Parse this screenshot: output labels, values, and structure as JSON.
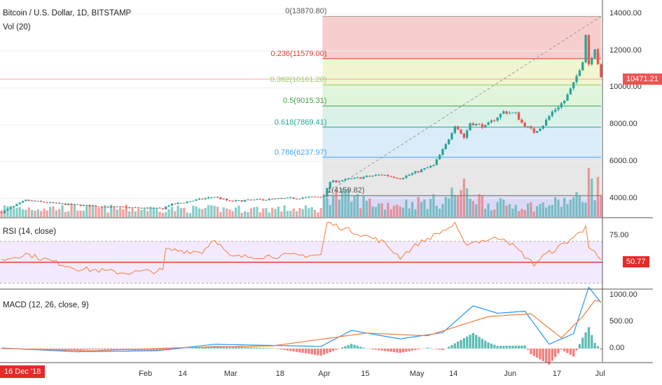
{
  "header": {
    "symbol": "Bitcoin / U.S. Dollar, 1D, BITSTAMP",
    "volume_title": "Vol (20)"
  },
  "rsi_panel": {
    "title": "RSI (14, close)",
    "last_value": "50.77"
  },
  "macd_panel": {
    "title": "MACD (12, 26, close, 9)"
  },
  "price_axis": {
    "ticks": [
      "14000.00",
      "12000.00",
      "10000.00",
      "8000.00",
      "6000.00",
      "4000.00"
    ],
    "last_price": "10471.21"
  },
  "rsi_axis": {
    "ticks": [
      "75.00"
    ]
  },
  "macd_axis": {
    "ticks": [
      "1000.00",
      "500.00",
      "0.00"
    ]
  },
  "time_axis": {
    "first_date": "16 Dec '18",
    "ticks": [
      "Feb",
      "14",
      "Mar",
      "18",
      "Apr",
      "15",
      "May",
      "14",
      "Jun",
      "17",
      "Jul"
    ]
  },
  "colors": {
    "up": "#26a69a",
    "down": "#ef5350",
    "rsi_line": "#f57c38",
    "rsi_band": "#ecdcff",
    "macd_line": "#2196f3",
    "signal_line": "#f57c38",
    "last_price_tag": "#ef5350",
    "rsi_tag": "#e52a2a"
  },
  "chart_data": {
    "type": "candlestick",
    "symbol": "Bitcoin / U.S. Dollar, 1D, BITSTAMP",
    "price_range": [
      3000,
      14000
    ],
    "last_price": 10471.21,
    "fibonacci": [
      {
        "level": "0",
        "price": 13870.8,
        "label": "0(13870.80)",
        "color": "#9e9e9e",
        "fill": "#f5c6c6"
      },
      {
        "level": "0.236",
        "price": 11579.0,
        "label": "0.236(11579.00)",
        "color": "#e53935",
        "fill": "#f0f5c8"
      },
      {
        "level": "0.382",
        "price": 10161.2,
        "label": "0.382(10161.20)",
        "color": "#9ccc65",
        "fill": "#dcf3d6"
      },
      {
        "level": "0.5",
        "price": 9015.31,
        "label": "0.5(9015.31)",
        "color": "#43a047",
        "fill": "#d3efe4"
      },
      {
        "level": "0.618",
        "price": 7869.41,
        "label": "0.618(7869.41)",
        "color": "#26a69a",
        "fill": "#d4e9f7"
      },
      {
        "level": "0.786",
        "price": 6237.97,
        "label": "0.786(6237.97)",
        "color": "#42a5f5",
        "fill": "#e3e3e3"
      },
      {
        "level": "1",
        "price": 4159.82,
        "label": "1(4159.82)",
        "color": "#757575",
        "fill": "#d4d2f3"
      }
    ],
    "price_segments": [
      [
        "2018-12-16",
        3250
      ],
      [
        "2018-12-24",
        3900
      ],
      [
        "2019-01-05",
        3700
      ],
      [
        "2019-01-20",
        3550
      ],
      [
        "2019-02-07",
        3450
      ],
      [
        "2019-02-09",
        3650
      ],
      [
        "2019-02-24",
        4100
      ],
      [
        "2019-03-01",
        3850
      ],
      [
        "2019-03-31",
        4100
      ],
      [
        "2019-04-01",
        4150
      ],
      [
        "2019-04-03",
        4900
      ],
      [
        "2019-04-20",
        5300
      ],
      [
        "2019-04-26",
        5100
      ],
      [
        "2019-05-07",
        5800
      ],
      [
        "2019-05-11",
        6900
      ],
      [
        "2019-05-14",
        8000
      ],
      [
        "2019-05-17",
        7300
      ],
      [
        "2019-05-19",
        8100
      ],
      [
        "2019-05-24",
        7900
      ],
      [
        "2019-05-30",
        8700
      ],
      [
        "2019-06-03",
        8600
      ],
      [
        "2019-06-05",
        8100
      ],
      [
        "2019-06-09",
        7600
      ],
      [
        "2019-06-12",
        8000
      ],
      [
        "2019-06-15",
        8700
      ],
      [
        "2019-06-19",
        9300
      ],
      [
        "2019-06-22",
        10200
      ],
      [
        "2019-06-25",
        11500
      ],
      [
        "2019-06-26",
        12900
      ],
      [
        "2019-06-27",
        11300
      ],
      [
        "2019-06-29",
        12200
      ],
      [
        "2019-07-01",
        10471
      ]
    ],
    "volume_segments": [
      [
        "2018-12-16",
        0.35
      ],
      [
        "2019-02-08",
        0.3
      ],
      [
        "2019-03-31",
        0.3
      ],
      [
        "2019-04-02",
        0.9
      ],
      [
        "2019-04-20",
        0.45
      ],
      [
        "2019-05-10",
        0.6
      ],
      [
        "2019-05-14",
        0.9
      ],
      [
        "2019-05-17",
        1.0
      ],
      [
        "2019-05-25",
        0.5
      ],
      [
        "2019-06-10",
        0.4
      ],
      [
        "2019-06-25",
        0.7
      ],
      [
        "2019-06-27",
        1.4
      ],
      [
        "2019-07-01",
        0.9
      ]
    ],
    "rsi_segments": [
      [
        "2018-12-16",
        52
      ],
      [
        "2018-12-24",
        58
      ],
      [
        "2019-01-10",
        44
      ],
      [
        "2019-01-25",
        40
      ],
      [
        "2019-02-07",
        42
      ],
      [
        "2019-02-08",
        62
      ],
      [
        "2019-02-20",
        60
      ],
      [
        "2019-02-24",
        73
      ],
      [
        "2019-03-01",
        55
      ],
      [
        "2019-03-31",
        57
      ],
      [
        "2019-04-02",
        88
      ],
      [
        "2019-04-20",
        70
      ],
      [
        "2019-04-26",
        55
      ],
      [
        "2019-05-02",
        68
      ],
      [
        "2019-05-14",
        86
      ],
      [
        "2019-05-17",
        68
      ],
      [
        "2019-05-30",
        74
      ],
      [
        "2019-06-09",
        48
      ],
      [
        "2019-06-12",
        56
      ],
      [
        "2019-06-17",
        64
      ],
      [
        "2019-06-25",
        80
      ],
      [
        "2019-06-26",
        87
      ],
      [
        "2019-06-27",
        66
      ],
      [
        "2019-07-01",
        50.77
      ]
    ],
    "rsi_levels": {
      "upper": 70,
      "lower": 30,
      "mid": 50,
      "range": [
        25,
        92
      ]
    },
    "macd_segments": [
      [
        "2018-12-16",
        10
      ],
      [
        "2019-01-10",
        -60
      ],
      [
        "2019-02-05",
        -40
      ],
      [
        "2019-02-24",
        80
      ],
      [
        "2019-03-31",
        40
      ],
      [
        "2019-04-10",
        340
      ],
      [
        "2019-04-26",
        180
      ],
      [
        "2019-05-10",
        300
      ],
      [
        "2019-05-20",
        800
      ],
      [
        "2019-05-28",
        660
      ],
      [
        "2019-06-06",
        700
      ],
      [
        "2019-06-14",
        80
      ],
      [
        "2019-06-22",
        280
      ],
      [
        "2019-06-27",
        1150
      ],
      [
        "2019-07-01",
        860
      ]
    ],
    "signal_segments": [
      [
        "2018-12-16",
        0
      ],
      [
        "2019-01-15",
        -40
      ],
      [
        "2019-02-15",
        20
      ],
      [
        "2019-03-15",
        50
      ],
      [
        "2019-04-15",
        290
      ],
      [
        "2019-05-05",
        240
      ],
      [
        "2019-05-25",
        600
      ],
      [
        "2019-06-08",
        650
      ],
      [
        "2019-06-18",
        200
      ],
      [
        "2019-06-25",
        600
      ],
      [
        "2019-06-29",
        900
      ],
      [
        "2019-07-01",
        880
      ]
    ],
    "macd_range": [
      -250,
      1100
    ]
  }
}
